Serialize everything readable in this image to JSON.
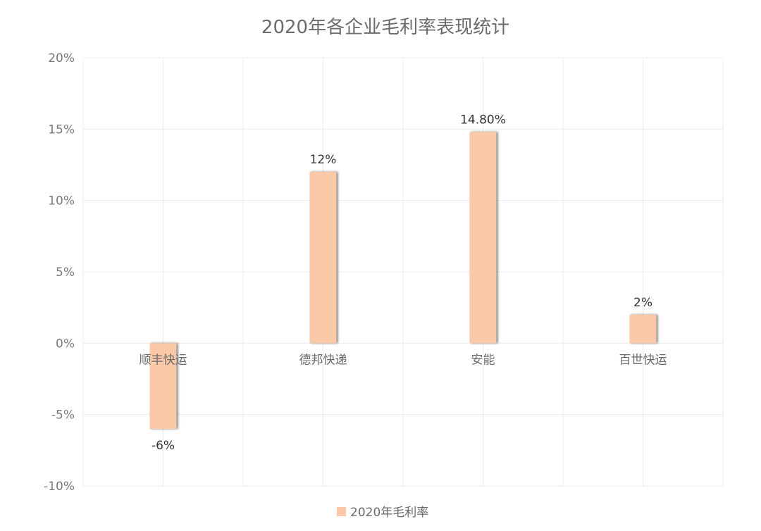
{
  "chart_data": {
    "type": "bar",
    "title": "2020年各企业毛利率表现统计",
    "categories": [
      "顺丰快运",
      "德邦快递",
      "安能",
      "百世快运"
    ],
    "series": [
      {
        "name": "2020年毛利率",
        "values": [
          -6,
          12,
          14.8,
          2
        ],
        "labels": [
          "-6%",
          "12%",
          "14.80%",
          "2%"
        ],
        "color": "#fbc9a7"
      }
    ],
    "ylim": [
      -10,
      20
    ],
    "yticks": [
      20,
      15,
      10,
      5,
      0,
      -5,
      -10
    ],
    "ytick_labels": [
      "20%",
      "15%",
      "10%",
      "5%",
      "0%",
      "-5%",
      "-10%"
    ],
    "xlabel": "",
    "ylabel": "",
    "grid": true,
    "legend_position": "bottom"
  },
  "colors": {
    "grid": "#ececec",
    "axis_text": "#7a7a7a",
    "bar_shadow": "#555555"
  }
}
